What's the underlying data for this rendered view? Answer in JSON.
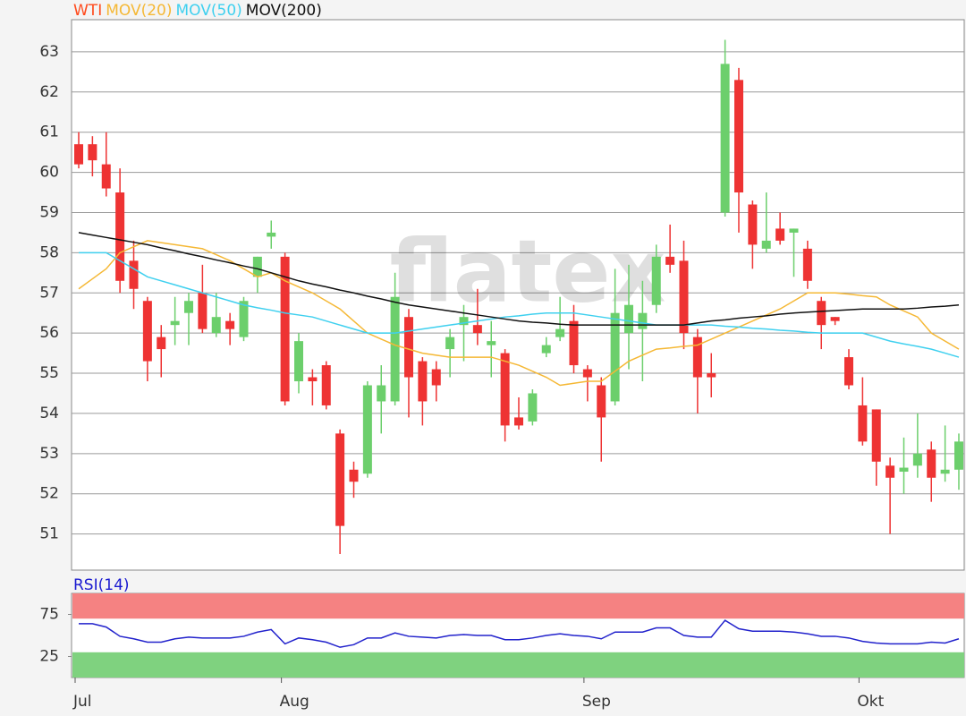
{
  "watermark": "flatex",
  "chart_data": [
    {
      "type": "candlestick",
      "ylim": [
        50.1,
        63.8
      ],
      "yticks": [
        51,
        52,
        53,
        54,
        55,
        56,
        57,
        58,
        59,
        60,
        61,
        62,
        63
      ],
      "grid": true,
      "series": [
        {
          "name": "WTI",
          "color": "#ff4a1c",
          "up_color": "#6ccf6c",
          "down_color": "#ee3333",
          "open": [
            60.7,
            60.7,
            60.2,
            59.5,
            57.8,
            56.8,
            55.9,
            56.2,
            56.5,
            57.0,
            56.0,
            56.3,
            55.9,
            57.4,
            58.4,
            57.9,
            54.8,
            54.9,
            55.2,
            53.5,
            52.6,
            52.5,
            54.3,
            54.3,
            56.4,
            55.3,
            55.1,
            55.6,
            56.2,
            56.2,
            55.7,
            55.5,
            53.9,
            53.8,
            55.5,
            55.9,
            56.3,
            55.1,
            54.7,
            54.3,
            56.0,
            56.1,
            56.7,
            57.9,
            57.8,
            55.9,
            55.0,
            59.0,
            62.3,
            59.2,
            58.1,
            58.6,
            58.5,
            58.1,
            56.8,
            56.4,
            55.4,
            54.2,
            54.1,
            52.7,
            52.55,
            52.7,
            53.1,
            52.5,
            52.6
          ],
          "high": [
            61.0,
            60.9,
            61.0,
            60.1,
            58.3,
            56.9,
            56.2,
            56.9,
            57.0,
            57.7,
            57.0,
            56.5,
            56.9,
            57.9,
            58.8,
            58.0,
            56.0,
            55.1,
            55.3,
            53.6,
            52.8,
            54.8,
            55.2,
            57.5,
            56.6,
            55.4,
            55.3,
            56.1,
            56.7,
            57.1,
            56.3,
            55.6,
            54.4,
            54.6,
            55.9,
            56.9,
            56.7,
            55.2,
            54.9,
            57.6,
            57.7,
            57.3,
            58.2,
            58.7,
            58.3,
            56.1,
            55.5,
            63.3,
            62.6,
            59.3,
            59.5,
            59.0,
            58.6,
            58.3,
            56.9,
            56.4,
            55.6,
            54.9,
            54.1,
            52.9,
            53.4,
            54.0,
            53.3,
            53.7,
            53.5
          ],
          "low": [
            60.1,
            59.9,
            59.4,
            57.0,
            56.6,
            54.8,
            54.9,
            55.7,
            55.7,
            56.0,
            55.9,
            55.7,
            55.8,
            57.0,
            58.1,
            54.2,
            54.5,
            54.2,
            54.1,
            50.5,
            51.9,
            52.4,
            53.5,
            54.2,
            53.9,
            53.7,
            54.3,
            54.9,
            55.3,
            55.7,
            54.9,
            53.3,
            53.6,
            53.7,
            55.4,
            55.8,
            55.0,
            54.3,
            52.8,
            54.2,
            55.1,
            54.8,
            56.5,
            57.5,
            55.6,
            54.0,
            54.4,
            58.9,
            58.5,
            57.6,
            58.0,
            58.2,
            57.4,
            57.1,
            55.6,
            56.2,
            54.6,
            53.2,
            52.2,
            51.0,
            52.0,
            52.4,
            51.8,
            52.3,
            52.1
          ],
          "close": [
            60.2,
            60.3,
            59.6,
            57.3,
            57.1,
            55.3,
            55.6,
            56.3,
            56.8,
            56.1,
            56.4,
            56.1,
            56.8,
            57.9,
            58.5,
            54.3,
            55.8,
            54.8,
            54.2,
            51.2,
            52.3,
            54.7,
            54.7,
            56.9,
            54.9,
            54.3,
            54.7,
            55.9,
            56.4,
            56.0,
            55.8,
            53.7,
            53.7,
            54.5,
            55.7,
            56.1,
            55.2,
            54.9,
            53.9,
            56.5,
            56.7,
            56.5,
            57.9,
            57.7,
            56.0,
            54.9,
            54.9,
            62.7,
            59.5,
            58.2,
            58.3,
            58.3,
            58.6,
            57.3,
            56.2,
            56.3,
            54.7,
            53.3,
            52.8,
            52.4,
            52.65,
            53.0,
            52.4,
            52.6,
            53.3
          ]
        },
        {
          "name": "MOV(20)",
          "type": "line",
          "color": "#f5b835",
          "values": [
            57.1,
            57.35,
            57.6,
            58.0,
            58.15,
            58.3,
            58.25,
            58.2,
            58.15,
            58.1,
            57.95,
            57.8,
            57.6,
            57.4,
            57.5,
            57.3,
            57.15,
            57.0,
            56.8,
            56.6,
            56.3,
            56.0,
            55.85,
            55.7,
            55.6,
            55.5,
            55.45,
            55.4,
            55.4,
            55.4,
            55.4,
            55.3,
            55.2,
            55.05,
            54.9,
            54.7,
            54.75,
            54.8,
            54.8,
            55.05,
            55.3,
            55.45,
            55.6,
            55.63,
            55.67,
            55.7,
            55.85,
            56.0,
            56.15,
            56.3,
            56.45,
            56.6,
            56.8,
            57.0,
            57.0,
            57.0,
            56.97,
            56.93,
            56.9,
            56.7,
            56.55,
            56.4,
            56.0,
            55.8,
            55.6
          ]
        },
        {
          "name": "MOV(50)",
          "type": "line",
          "color": "#3fd0ef",
          "values": [
            58.0,
            58.0,
            58.0,
            57.8,
            57.6,
            57.4,
            57.3,
            57.2,
            57.1,
            57.0,
            56.9,
            56.8,
            56.7,
            56.63,
            56.57,
            56.5,
            56.45,
            56.4,
            56.3,
            56.2,
            56.1,
            56.0,
            56.0,
            56.0,
            56.05,
            56.1,
            56.15,
            56.2,
            56.25,
            56.3,
            56.35,
            56.4,
            56.43,
            56.47,
            56.5,
            56.5,
            56.5,
            56.45,
            56.4,
            56.35,
            56.3,
            56.25,
            56.2,
            56.2,
            56.2,
            56.2,
            56.2,
            56.17,
            56.15,
            56.12,
            56.1,
            56.07,
            56.05,
            56.02,
            56.0,
            56.0,
            56.0,
            56.0,
            55.9,
            55.8,
            55.73,
            55.67,
            55.6,
            55.5,
            55.4
          ]
        },
        {
          "name": "MOV(200)",
          "type": "line",
          "color": "#111111",
          "values": [
            58.5,
            58.44,
            58.38,
            58.32,
            58.26,
            58.2,
            58.12,
            58.05,
            57.97,
            57.9,
            57.82,
            57.75,
            57.67,
            57.6,
            57.5,
            57.4,
            57.3,
            57.22,
            57.15,
            57.07,
            57.0,
            56.92,
            56.85,
            56.77,
            56.7,
            56.65,
            56.6,
            56.55,
            56.5,
            56.45,
            56.4,
            56.35,
            56.3,
            56.27,
            56.25,
            56.22,
            56.2,
            56.2,
            56.2,
            56.2,
            56.2,
            56.2,
            56.2,
            56.2,
            56.2,
            56.25,
            56.3,
            56.33,
            56.37,
            56.4,
            56.43,
            56.47,
            56.5,
            56.52,
            56.54,
            56.56,
            56.58,
            56.6,
            56.6,
            56.6,
            56.6,
            56.62,
            56.65,
            56.67,
            56.7
          ]
        }
      ]
    },
    {
      "type": "line",
      "title": "RSI(14)",
      "title_color": "#1a1ad0",
      "categories": [
        "Jul",
        null,
        null,
        null,
        null,
        null,
        null,
        null,
        null,
        null,
        null,
        null,
        null,
        null,
        null,
        "Aug",
        null,
        null,
        null,
        null,
        null,
        null,
        null,
        null,
        null,
        null,
        null,
        null,
        null,
        null,
        null,
        null,
        null,
        null,
        null,
        null,
        null,
        "Sep",
        null,
        null,
        null,
        null,
        null,
        null,
        null,
        null,
        null,
        null,
        null,
        null,
        null,
        null,
        null,
        null,
        null,
        null,
        null,
        "Okt",
        null,
        null,
        null,
        null,
        null,
        null,
        null
      ],
      "ylim": [
        0,
        100
      ],
      "yticks": [
        25,
        75
      ],
      "bands": [
        {
          "from": 70,
          "to": 100,
          "color": "#f58282"
        },
        {
          "from": 0,
          "to": 30,
          "color": "#7fd27f"
        }
      ],
      "series": [
        {
          "name": "RSI(14)",
          "color": "#2222cc",
          "values": [
            64,
            64,
            60,
            49,
            46,
            42,
            42,
            46,
            48,
            47,
            47,
            47,
            49,
            54,
            57,
            40,
            47,
            45,
            42,
            36,
            39,
            47,
            47,
            53,
            49,
            48,
            47,
            50,
            51,
            50,
            50,
            45,
            45,
            47,
            50,
            52,
            50,
            49,
            46,
            54,
            54,
            54,
            59,
            59,
            50,
            48,
            48,
            68,
            58,
            55,
            55,
            55,
            54,
            52,
            49,
            49,
            47,
            43,
            41,
            40,
            40,
            40,
            42,
            41,
            46
          ]
        }
      ]
    }
  ]
}
